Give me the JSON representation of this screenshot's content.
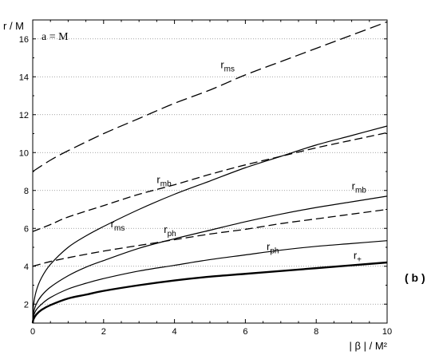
{
  "chart_data": {
    "type": "line",
    "xlabel": "| β | / M²",
    "ylabel": "r  / M",
    "xlim": [
      0,
      10
    ],
    "ylim": [
      1,
      17
    ],
    "xticks": [
      0,
      2,
      4,
      6,
      8,
      10
    ],
    "yticks": [
      2,
      4,
      6,
      8,
      10,
      12,
      14,
      16
    ],
    "grid": "horizontal-dotted",
    "annotation": "a = M",
    "panel_label": "( b )",
    "series": [
      {
        "name": "r_ms",
        "label_main": "r",
        "label_sub": "ms",
        "style": "long-dash",
        "x": [
          0,
          0.5,
          1,
          2,
          3,
          4,
          5,
          6,
          7,
          8,
          9,
          10
        ],
        "y": [
          9.0,
          9.6,
          10.1,
          11.0,
          11.8,
          12.6,
          13.3,
          14.1,
          14.8,
          15.5,
          16.2,
          16.9
        ]
      },
      {
        "name": "r_mb",
        "label_main": "r",
        "label_sub": "mb",
        "style": "dash",
        "x": [
          0,
          0.5,
          1,
          2,
          3,
          4,
          5,
          6,
          7,
          8,
          9,
          10
        ],
        "y": [
          5.83,
          6.2,
          6.6,
          7.2,
          7.8,
          8.3,
          8.85,
          9.35,
          9.8,
          10.25,
          10.65,
          11.05
        ]
      },
      {
        "name": "r_ph",
        "label_main": "r",
        "label_sub": "ph",
        "style": "dash",
        "x": [
          0,
          0.5,
          1,
          2,
          3,
          4,
          5,
          6,
          7,
          8,
          9,
          10
        ],
        "y": [
          4.0,
          4.25,
          4.45,
          4.8,
          5.1,
          5.4,
          5.7,
          5.95,
          6.25,
          6.5,
          6.75,
          7.0
        ]
      },
      {
        "name": "r_ms",
        "label_main": "r",
        "label_sub": "ms",
        "style": "solid",
        "x": [
          0,
          0.02,
          0.1,
          0.25,
          0.5,
          1,
          1.5,
          2,
          3,
          4,
          5,
          6,
          7,
          8,
          9,
          10
        ],
        "y": [
          1.0,
          1.9,
          2.7,
          3.4,
          4.1,
          5.0,
          5.6,
          6.1,
          7.0,
          7.8,
          8.5,
          9.2,
          9.8,
          10.4,
          10.9,
          11.4
        ]
      },
      {
        "name": "r_mb",
        "label_main": "r",
        "label_sub": "mb",
        "style": "solid",
        "x": [
          0,
          0.02,
          0.1,
          0.25,
          0.5,
          1,
          1.5,
          2,
          3,
          4,
          5,
          6,
          7,
          8,
          9,
          10
        ],
        "y": [
          1.0,
          1.5,
          2.0,
          2.45,
          2.9,
          3.5,
          3.95,
          4.3,
          4.95,
          5.45,
          5.9,
          6.35,
          6.75,
          7.1,
          7.4,
          7.7
        ]
      },
      {
        "name": "r_ph",
        "label_main": "r",
        "label_sub": "ph",
        "style": "solid",
        "x": [
          0,
          0.02,
          0.1,
          0.25,
          0.5,
          1,
          1.5,
          2,
          3,
          4,
          5,
          6,
          7,
          8,
          9,
          10
        ],
        "y": [
          1.0,
          1.35,
          1.7,
          2.0,
          2.35,
          2.8,
          3.1,
          3.35,
          3.75,
          4.05,
          4.35,
          4.6,
          4.85,
          5.05,
          5.2,
          5.35
        ]
      },
      {
        "name": "r_+",
        "label_main": "r",
        "label_sub": "+",
        "style": "thick-solid",
        "x": [
          0,
          0.02,
          0.1,
          0.25,
          0.5,
          1,
          1.5,
          2,
          3,
          4,
          5,
          6,
          7,
          8,
          9,
          10
        ],
        "y": [
          1.0,
          1.2,
          1.45,
          1.7,
          1.95,
          2.3,
          2.5,
          2.7,
          3.0,
          3.25,
          3.45,
          3.6,
          3.75,
          3.9,
          4.05,
          4.2
        ]
      }
    ],
    "curve_labels": [
      {
        "series": 0,
        "x": 5.3,
        "y": 14.45
      },
      {
        "series": 1,
        "x": 3.5,
        "y": 8.4
      },
      {
        "series": 2,
        "x": 3.7,
        "y": 5.75
      },
      {
        "series": 3,
        "x": 2.2,
        "y": 6.05
      },
      {
        "series": 4,
        "x": 9.0,
        "y": 8.05
      },
      {
        "series": 5,
        "x": 6.6,
        "y": 4.85
      },
      {
        "series": 6,
        "x": 9.05,
        "y": 4.4
      }
    ]
  }
}
